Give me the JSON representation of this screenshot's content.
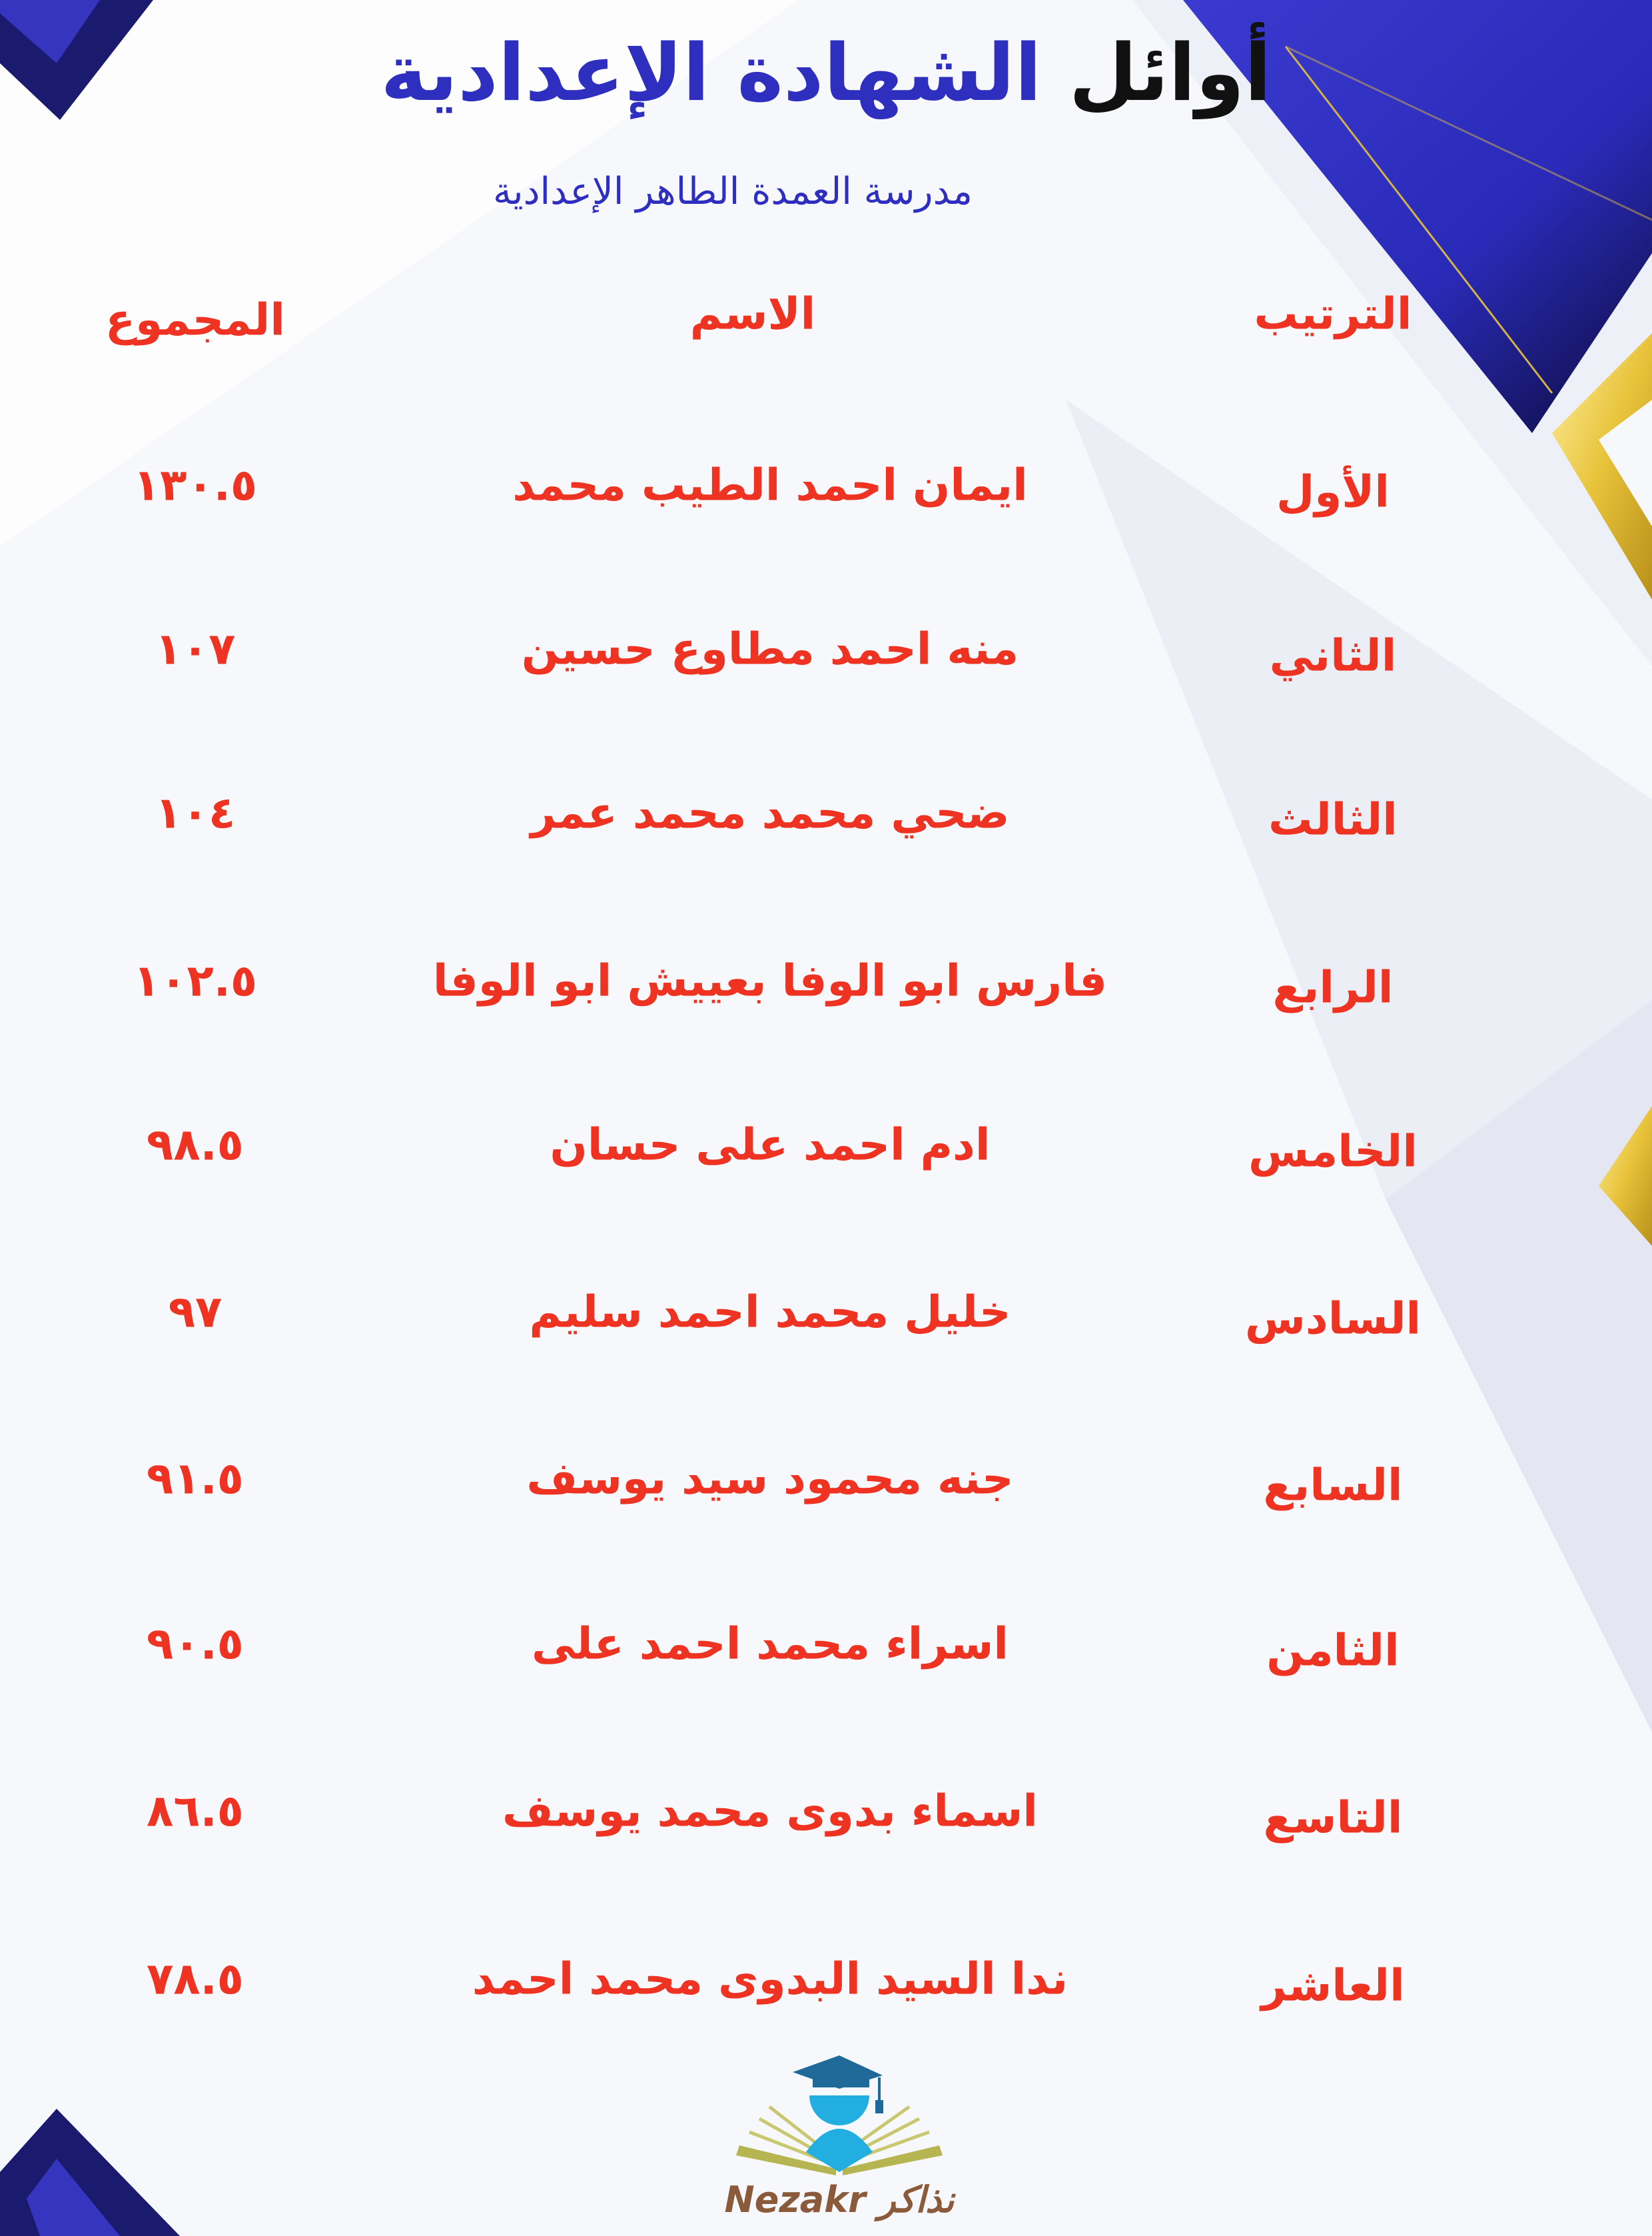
{
  "header": {
    "title_part1": "أوائل",
    "title_part2": "الشهادة الإعدادية",
    "subtitle": "مدرسة العمدة الطاهر الإعدادية"
  },
  "table": {
    "columns": [
      "الترتيب",
      "الاسم",
      "المجموع"
    ],
    "rows": [
      {
        "rank": "الأول",
        "name": "ايمان احمد الطيب محمد",
        "total": "١٣٠.٥"
      },
      {
        "rank": "الثاني",
        "name": "منه احمد مطاوع حسين",
        "total": "١٠٧"
      },
      {
        "rank": "الثالث",
        "name": "ضحي محمد محمد عمر",
        "total": "١٠٤"
      },
      {
        "rank": "الرابع",
        "name": "فارس ابو الوفا بعييش ابو الوفا",
        "total": "١٠٢.٥"
      },
      {
        "rank": "الخامس",
        "name": "ادم احمد على حسان",
        "total": "٩٨.٥"
      },
      {
        "rank": "السادس",
        "name": "خليل محمد احمد سليم",
        "total": "٩٧"
      },
      {
        "rank": "السابع",
        "name": "جنه محمود سيد يوسف",
        "total": "٩١.٥"
      },
      {
        "rank": "الثامن",
        "name": "اسراء محمد احمد على",
        "total": "٩٠.٥"
      },
      {
        "rank": "التاسع",
        "name": "اسماء بدوى محمد يوسف",
        "total": "٨٦.٥"
      },
      {
        "rank": "العاشر",
        "name": "ندا السيد البدوى محمد احمد",
        "total": "٧٨.٥"
      }
    ]
  },
  "logo": {
    "text": "Nezakr نذاكر",
    "icon": "graduate-book-icon"
  },
  "colors": {
    "title_blue": "#2f2fbf",
    "row_red": "#ee3322",
    "navy": "#1a1a6e",
    "gold": "#e8c33a"
  }
}
